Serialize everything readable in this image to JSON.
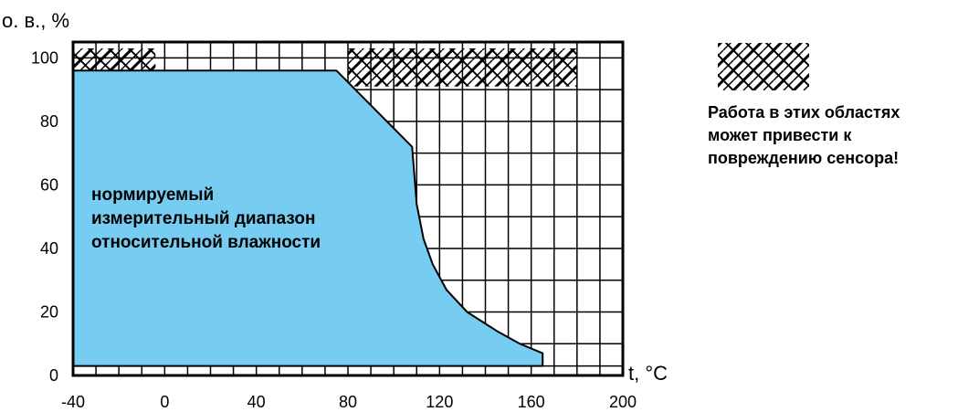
{
  "chart_data": {
    "type": "area",
    "y_axis_title": "о. в., %",
    "x_axis_title": "t, °C",
    "xlim": [
      -40,
      200
    ],
    "ylim": [
      0,
      105
    ],
    "x_ticks": [
      -40,
      0,
      40,
      80,
      120,
      160,
      200
    ],
    "y_ticks": [
      0,
      20,
      40,
      60,
      80,
      100
    ],
    "grid": "on",
    "normal_range": {
      "color": "#77ccf2",
      "label_lines": [
        "нормируемый",
        "измерительный диапазон",
        "относительной влажности"
      ],
      "boundary": [
        {
          "x": -40,
          "y": 3
        },
        {
          "x": -40,
          "y": 96
        },
        {
          "x": 75,
          "y": 96
        },
        {
          "x": 108,
          "y": 72
        },
        {
          "x": 110,
          "y": 54
        },
        {
          "x": 113,
          "y": 43
        },
        {
          "x": 117,
          "y": 35
        },
        {
          "x": 123,
          "y": 27
        },
        {
          "x": 132,
          "y": 20
        },
        {
          "x": 145,
          "y": 14
        },
        {
          "x": 155,
          "y": 10
        },
        {
          "x": 165,
          "y": 7
        },
        {
          "x": 165,
          "y": 3
        }
      ]
    },
    "damage_zones": [
      {
        "x0": -40,
        "x1": -4,
        "y0": 96,
        "y1": 103
      },
      {
        "x0": 80,
        "x1": 180,
        "y0": 91,
        "y1": 103
      }
    ]
  },
  "legend": {
    "color": "#000000",
    "lines": [
      "Работа в этих областях",
      "может привести к",
      "повреждению сенсора!"
    ]
  }
}
